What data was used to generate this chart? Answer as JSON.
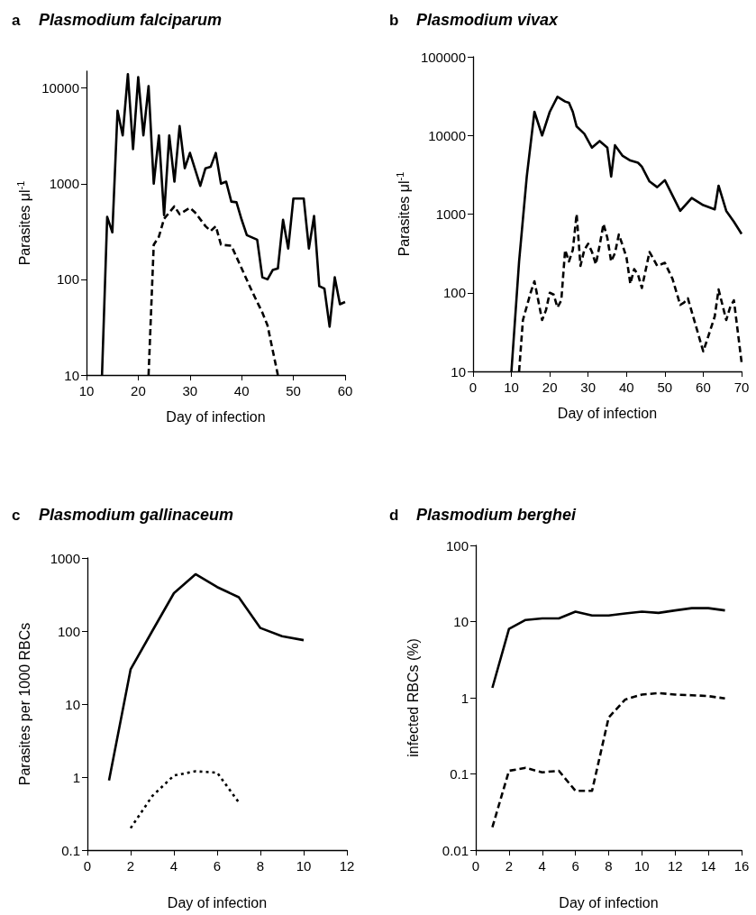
{
  "chart_data": [
    {
      "type": "line",
      "title": "a Plasmodium falciparum",
      "xlabel": "Day of infection",
      "ylabel": "Parasites μl$^{-1}$",
      "log": "y",
      "xlim": [
        10,
        60
      ],
      "xticks": [
        10,
        20,
        30,
        40,
        50,
        60
      ],
      "ylim": [
        10,
        15000
      ],
      "yticks": [
        10,
        100,
        1000,
        10000
      ],
      "series": [
        {
          "color": "#000000",
          "line_style": "solid",
          "x": [
            13,
            14,
            15,
            16,
            17,
            18,
            19,
            20,
            21,
            22,
            23,
            24,
            25,
            26,
            27,
            28,
            29,
            30,
            32,
            33,
            34,
            35,
            36,
            37,
            38,
            39,
            40,
            41,
            43,
            44,
            45,
            46,
            47,
            48,
            49,
            50,
            52,
            53,
            54,
            55,
            56,
            57,
            58,
            59,
            60
          ],
          "values": [
            10,
            450,
            310,
            5800,
            3200,
            14000,
            2300,
            13000,
            3200,
            10500,
            1000,
            3200,
            470,
            3200,
            1050,
            4000,
            1450,
            2100,
            950,
            1450,
            1500,
            2100,
            1000,
            1050,
            650,
            640,
            420,
            290,
            260,
            105,
            100,
            125,
            130,
            420,
            210,
            700,
            700,
            210,
            460,
            85,
            80,
            32,
            105,
            55,
            58
          ]
        },
        {
          "color": "#000000",
          "line_style": "dashed",
          "x": [
            22,
            23,
            24,
            25,
            27,
            28,
            30,
            31,
            33,
            34,
            35,
            36,
            38,
            40,
            42,
            44,
            45,
            47
          ],
          "values": [
            10,
            230,
            280,
            430,
            580,
            480,
            560,
            500,
            360,
            320,
            360,
            230,
            225,
            130,
            75,
            45,
            33,
            10
          ]
        }
      ]
    },
    {
      "type": "line",
      "title": "b Plasmodium vivax",
      "xlabel": "Day of infection",
      "ylabel": "Parasites μl$^{-1}$",
      "log": "y",
      "xlim": [
        0,
        70
      ],
      "xticks": [
        0,
        10,
        20,
        30,
        40,
        50,
        60,
        70
      ],
      "ylim": [
        10,
        100000
      ],
      "yticks": [
        10,
        100,
        1000,
        10000,
        100000
      ],
      "series": [
        {
          "color": "#000000",
          "line_style": "solid",
          "x": [
            10,
            12,
            14,
            16,
            18,
            20,
            22,
            24,
            25,
            26,
            27,
            29,
            31,
            33,
            35,
            36,
            37,
            39,
            41,
            43,
            44,
            46,
            48,
            50,
            54,
            57,
            60,
            63,
            64,
            66,
            68,
            70
          ],
          "values": [
            10,
            250,
            3000,
            20000,
            10000,
            20000,
            31000,
            27000,
            26000,
            20000,
            13000,
            10500,
            7000,
            8500,
            7000,
            3000,
            7500,
            5500,
            4800,
            4500,
            4000,
            2600,
            2200,
            2700,
            1100,
            1600,
            1300,
            1150,
            2300,
            1100,
            800,
            560
          ]
        },
        {
          "color": "#000000",
          "line_style": "dashed",
          "x": [
            12,
            13,
            15,
            16,
            18,
            19,
            20,
            21,
            22,
            23,
            24,
            25,
            26,
            27,
            28,
            29,
            30,
            31,
            32,
            33,
            34,
            35,
            36,
            37,
            38,
            39,
            40,
            41,
            42,
            43,
            44,
            46,
            48,
            50,
            52,
            54,
            55,
            56,
            60,
            61,
            63,
            64,
            66,
            67,
            68,
            70
          ],
          "values": [
            10,
            45,
            100,
            140,
            45,
            60,
            100,
            95,
            65,
            80,
            350,
            250,
            350,
            1000,
            220,
            350,
            420,
            330,
            230,
            400,
            750,
            500,
            250,
            320,
            550,
            400,
            280,
            130,
            200,
            170,
            115,
            330,
            220,
            240,
            150,
            70,
            75,
            85,
            18,
            25,
            50,
            110,
            45,
            65,
            80,
            13
          ]
        }
      ]
    },
    {
      "type": "line",
      "title": "c Plasmodium gallinaceum",
      "xlabel": "Day of infection",
      "ylabel": "Parasites per 1000 RBCs",
      "log": "y",
      "xlim": [
        0,
        12
      ],
      "xticks": [
        0,
        2,
        4,
        6,
        8,
        10,
        12
      ],
      "ylim": [
        0.1,
        1000
      ],
      "yticks": [
        0.1,
        1,
        10,
        100,
        1000
      ],
      "series": [
        {
          "color": "#000000",
          "line_style": "solid",
          "x": [
            1,
            2,
            3,
            4,
            5,
            6,
            7,
            8,
            9,
            10
          ],
          "values": [
            0.9,
            30,
            100,
            330,
            600,
            400,
            290,
            110,
            85,
            75
          ]
        },
        {
          "color": "#000000",
          "line_style": "dotted",
          "x": [
            2,
            3,
            4,
            5,
            6,
            7
          ],
          "values": [
            0.2,
            0.55,
            1.05,
            1.2,
            1.15,
            0.45
          ]
        }
      ]
    },
    {
      "type": "line",
      "title": "d Plasmodium berghei",
      "xlabel": "Day of infection",
      "ylabel": "infected RBCs (%)",
      "log": "y",
      "xlim": [
        0,
        16
      ],
      "xticks": [
        0,
        2,
        4,
        6,
        8,
        10,
        12,
        14,
        16
      ],
      "ylim": [
        0.01,
        100
      ],
      "yticks": [
        0.01,
        0.1,
        1,
        10,
        100
      ],
      "series": [
        {
          "color": "#000000",
          "line_style": "solid",
          "x": [
            1,
            2,
            3,
            4,
            5,
            6,
            7,
            8,
            9,
            10,
            11,
            12,
            13,
            14,
            15
          ],
          "values": [
            1.35,
            8,
            10.5,
            11,
            11,
            13.5,
            12,
            12,
            12.8,
            13.5,
            13,
            14,
            15,
            15,
            14
          ]
        },
        {
          "color": "#000000",
          "line_style": "dashed",
          "x": [
            1,
            2,
            3,
            4,
            5,
            6,
            7,
            8,
            9,
            10,
            11,
            12,
            13,
            14,
            15
          ],
          "values": [
            0.02,
            0.11,
            0.12,
            0.105,
            0.11,
            0.06,
            0.06,
            0.55,
            0.95,
            1.1,
            1.15,
            1.1,
            1.08,
            1.05,
            0.98
          ]
        }
      ]
    }
  ]
}
